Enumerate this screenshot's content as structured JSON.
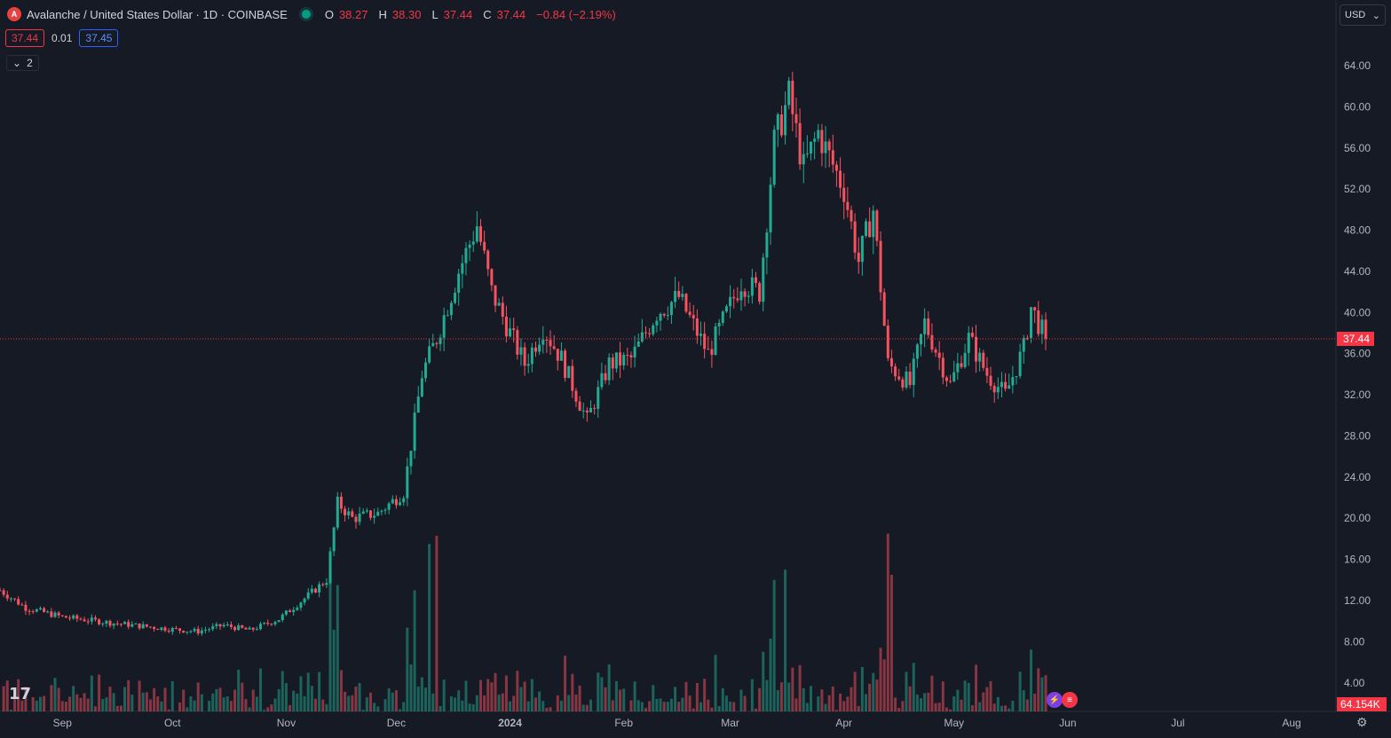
{
  "header": {
    "title": "Avalanche / United States Dollar · 1D · COINBASE",
    "o_label": "O",
    "o_value": "38.27",
    "h_label": "H",
    "h_value": "38.30",
    "l_label": "L",
    "l_value": "37.44",
    "c_label": "C",
    "c_value": "37.44",
    "change": "−0.84 (−2.19%)",
    "coin_letter": "A"
  },
  "quote": {
    "bid": "37.44",
    "spread": "0.01",
    "ask": "37.45"
  },
  "indicators": {
    "count": "2"
  },
  "currency": {
    "label": "USD"
  },
  "price_scale": {
    "ticks": [
      "64.00",
      "60.00",
      "56.00",
      "52.00",
      "48.00",
      "44.00",
      "40.00",
      "36.00",
      "32.00",
      "28.00",
      "24.00",
      "20.00",
      "16.00",
      "12.00",
      "8.00",
      "4.00"
    ],
    "last_price_label": "37.44",
    "volume_label": "64.154K"
  },
  "time_axis": {
    "ticks": [
      "Sep",
      "Oct",
      "Nov",
      "Dec",
      "2024",
      "Feb",
      "Mar",
      "Apr",
      "May",
      "Jun",
      "Jul",
      "Aug"
    ]
  },
  "colors": {
    "up": "#22ab94",
    "down": "#f7525f",
    "vol_up": "#22ab9480",
    "vol_down": "#f7525f80",
    "bg": "#161a25",
    "accent": "#f23645"
  },
  "icons": {
    "logo": "tradingview-logo",
    "settings": "settings-gear-icon"
  },
  "chart_data": {
    "type": "candlestick",
    "interval": "1D",
    "ylim": [
      0,
      66
    ],
    "last_price": 37.44,
    "anchors": [
      [
        "2023-08-15",
        13.0
      ],
      [
        "2023-08-22",
        11.3
      ],
      [
        "2023-09-01",
        10.4
      ],
      [
        "2023-09-15",
        9.8
      ],
      [
        "2023-10-01",
        9.2
      ],
      [
        "2023-10-08",
        9.0
      ],
      [
        "2023-10-15",
        9.6
      ],
      [
        "2023-10-22",
        9.1
      ],
      [
        "2023-10-30",
        10.2
      ],
      [
        "2023-11-06",
        12.2
      ],
      [
        "2023-11-12",
        14.0
      ],
      [
        "2023-11-15",
        21.5
      ],
      [
        "2023-11-19",
        20.0
      ],
      [
        "2023-11-26",
        20.5
      ],
      [
        "2023-12-03",
        22.5
      ],
      [
        "2023-12-08",
        34.0
      ],
      [
        "2023-12-12",
        37.5
      ],
      [
        "2023-12-18",
        44.0
      ],
      [
        "2023-12-23",
        48.5
      ],
      [
        "2023-12-27",
        42.0
      ],
      [
        "2024-01-01",
        38.0
      ],
      [
        "2024-01-05",
        35.0
      ],
      [
        "2024-01-10",
        38.5
      ],
      [
        "2024-01-15",
        35.5
      ],
      [
        "2024-01-22",
        29.5
      ],
      [
        "2024-01-28",
        35.0
      ],
      [
        "2024-02-03",
        35.5
      ],
      [
        "2024-02-10",
        40.0
      ],
      [
        "2024-02-16",
        41.5
      ],
      [
        "2024-02-24",
        36.0
      ],
      [
        "2024-03-04",
        43.0
      ],
      [
        "2024-03-09",
        42.0
      ],
      [
        "2024-03-13",
        56.5
      ],
      [
        "2024-03-17",
        61.0
      ],
      [
        "2024-03-21",
        54.0
      ],
      [
        "2024-03-25",
        57.5
      ],
      [
        "2024-04-01",
        52.0
      ],
      [
        "2024-04-05",
        45.0
      ],
      [
        "2024-04-09",
        50.0
      ],
      [
        "2024-04-13",
        35.0
      ],
      [
        "2024-04-19",
        33.0
      ],
      [
        "2024-04-23",
        39.0
      ],
      [
        "2024-04-30",
        33.0
      ],
      [
        "2024-05-05",
        37.5
      ],
      [
        "2024-05-10",
        34.0
      ],
      [
        "2024-05-15",
        32.0
      ],
      [
        "2024-05-20",
        36.5
      ],
      [
        "2024-05-22",
        40.5
      ],
      [
        "2024-05-26",
        37.44
      ]
    ],
    "volume_peaks": [
      [
        "2023-11-15",
        13.5
      ],
      [
        "2023-12-06",
        13.0
      ],
      [
        "2023-12-10",
        17.5
      ],
      [
        "2023-12-12",
        18.3
      ],
      [
        "2024-03-13",
        14.0
      ],
      [
        "2024-03-16",
        15.0
      ],
      [
        "2024-04-13",
        18.5
      ],
      [
        "2024-04-14",
        14.5
      ]
    ]
  }
}
